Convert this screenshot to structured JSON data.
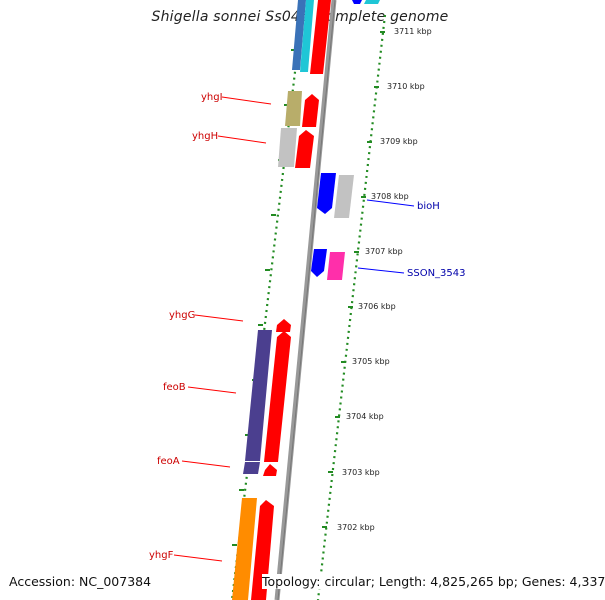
{
  "title": "Shigella sonnei Ss046, complete genome",
  "footer": {
    "accession": "Accession: NC_007384",
    "summary": "Topology: circular; Length: 4,825,265 bp; Genes: 4,337"
  },
  "colors": {
    "forward": "#ff0000",
    "reverse_gene": "#0000ff",
    "backbone": "#999999",
    "dotted_track": "#228b22",
    "red_label": "#cc0000",
    "blue_label": "#0000aa"
  },
  "kbp_labels": [
    "3711 kbp",
    "3710 kbp",
    "3709 kbp",
    "3708 kbp",
    "3707 kbp",
    "3706 kbp",
    "3705 kbp",
    "3704 kbp",
    "3703 kbp",
    "3702 kbp"
  ],
  "gene_labels": {
    "yhgI": "yhgI",
    "yhgH": "yhgH",
    "bioH": "bioH",
    "SSON_3543": "SSON_3543",
    "yhgG": "yhgG",
    "feoB": "feoB",
    "feoA": "feoA",
    "yhgF": "yhgF"
  }
}
